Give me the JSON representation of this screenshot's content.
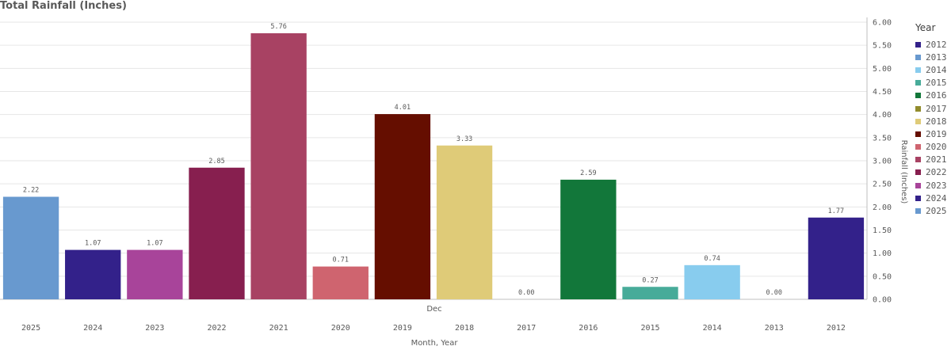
{
  "chart_data": {
    "type": "bar",
    "title": "Total Rainfall (Inches)",
    "group_label": "Dec",
    "xlabel": "Month, Year",
    "ylabel": "Rainfall (Inches)",
    "ylim": [
      0,
      6
    ],
    "yticks": [
      "0.00",
      "0.50",
      "1.00",
      "1.50",
      "2.00",
      "2.50",
      "3.00",
      "3.50",
      "4.00",
      "4.50",
      "5.00",
      "5.50",
      "6.00"
    ],
    "categories": [
      "2025",
      "2024",
      "2023",
      "2022",
      "2021",
      "2020",
      "2019",
      "2018",
      "2017",
      "2016",
      "2015",
      "2014",
      "2013",
      "2012"
    ],
    "values": [
      2.22,
      1.07,
      1.07,
      2.85,
      5.76,
      0.71,
      4.01,
      3.33,
      0.0,
      2.59,
      0.27,
      0.74,
      0.0,
      1.77
    ],
    "value_labels": [
      "2.22",
      "1.07",
      "1.07",
      "2.85",
      "5.76",
      "0.71",
      "4.01",
      "3.33",
      "0.00",
      "2.59",
      "0.27",
      "0.74",
      "0.00",
      "1.77"
    ],
    "bar_colors": [
      "#6899cf",
      "#33218a",
      "#a8449a",
      "#871f4f",
      "#a84263",
      "#cf646f",
      "#650e00",
      "#dfcb78",
      "#928c2c",
      "#12773a",
      "#47ab99",
      "#88ccee",
      "#47ab99",
      "#33218a"
    ],
    "grid": true,
    "legend_position": "right",
    "legend": {
      "title": "Year",
      "items": [
        {
          "label": "2012",
          "color": "#33218a"
        },
        {
          "label": "2013",
          "color": "#6899cf"
        },
        {
          "label": "2014",
          "color": "#88ccee"
        },
        {
          "label": "2015",
          "color": "#47ab99"
        },
        {
          "label": "2016",
          "color": "#12773a"
        },
        {
          "label": "2017",
          "color": "#928c2c"
        },
        {
          "label": "2018",
          "color": "#dfcb78"
        },
        {
          "label": "2019",
          "color": "#650e00"
        },
        {
          "label": "2020",
          "color": "#cf646f"
        },
        {
          "label": "2021",
          "color": "#a84263"
        },
        {
          "label": "2022",
          "color": "#871f4f"
        },
        {
          "label": "2023",
          "color": "#a8449a"
        },
        {
          "label": "2024",
          "color": "#33218a"
        },
        {
          "label": "2025",
          "color": "#6899cf"
        }
      ]
    }
  }
}
